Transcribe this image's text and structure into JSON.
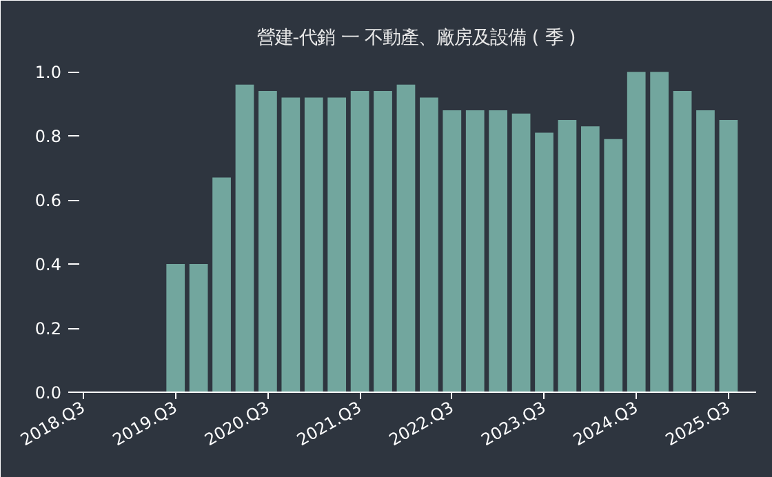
{
  "chart_data": {
    "type": "bar",
    "title": "營建-代銷 一 不動產、廠房及設備 ( 季 )",
    "categories": [
      "2018.Q3",
      null,
      null,
      null,
      "2019.Q3",
      null,
      null,
      null,
      "2020.Q3",
      null,
      null,
      null,
      "2021.Q3",
      null,
      null,
      null,
      "2022.Q3",
      null,
      null,
      null,
      "2023.Q3",
      null,
      null,
      null,
      "2024.Q3",
      null,
      null,
      null,
      "2025.Q3"
    ],
    "values": [
      null,
      null,
      null,
      null,
      0.4,
      0.4,
      0.67,
      0.96,
      0.94,
      0.92,
      0.92,
      0.92,
      0.94,
      0.94,
      0.96,
      0.92,
      0.88,
      0.88,
      0.88,
      0.87,
      0.81,
      0.85,
      0.83,
      0.79,
      1.0,
      1.0,
      0.94,
      0.88,
      0.85
    ],
    "color": "#72a69e",
    "ylim": [
      0,
      1.05
    ],
    "yticks": [
      {
        "value": 0,
        "label": "0.0"
      },
      {
        "value": 0.2,
        "label": "0.2"
      },
      {
        "value": 0.4,
        "label": "0.4"
      },
      {
        "value": 0.6,
        "label": "0.6"
      },
      {
        "value": 0.8,
        "label": "0.8"
      },
      {
        "value": 1.0,
        "label": "1.0"
      }
    ],
    "grid": false
  }
}
